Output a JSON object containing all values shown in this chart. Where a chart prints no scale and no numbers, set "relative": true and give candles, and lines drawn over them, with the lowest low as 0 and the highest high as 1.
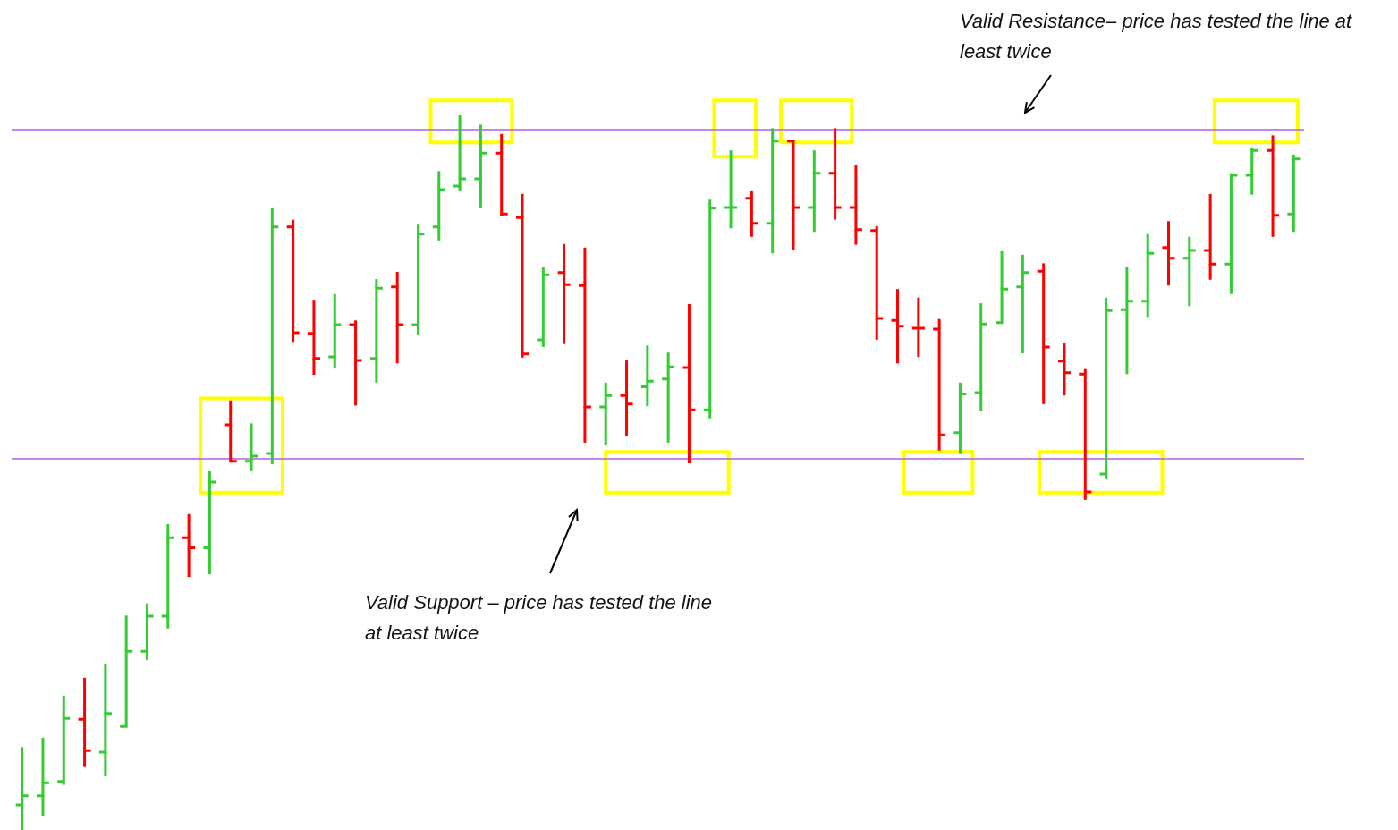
{
  "chart_data": {
    "type": "candlestick",
    "relative": true,
    "tick_labels": false,
    "grid": false,
    "categories": [
      null,
      null,
      null,
      null,
      null,
      null,
      null,
      null,
      null,
      null,
      null,
      null,
      null,
      null,
      null,
      null,
      null,
      null,
      null,
      null,
      null,
      null,
      null,
      null,
      null,
      null,
      null,
      null,
      null,
      null,
      null,
      null,
      null,
      null,
      null,
      null,
      null,
      null,
      null,
      null,
      null,
      null,
      null,
      null,
      null,
      null,
      null,
      null,
      null,
      null,
      null,
      null,
      null,
      null,
      null,
      null,
      null,
      null,
      null,
      null,
      null,
      null
    ],
    "ohlc": [
      [
        0.035,
        0.116,
        0,
        0.048
      ],
      [
        0.048,
        0.129,
        0.02,
        0.066
      ],
      [
        0.068,
        0.188,
        0.063,
        0.156
      ],
      [
        0.155,
        0.213,
        0.088,
        0.111
      ],
      [
        0.109,
        0.233,
        0.075,
        0.163
      ],
      [
        0.145,
        0.3,
        0.145,
        0.25
      ],
      [
        0.25,
        0.317,
        0.238,
        0.299
      ],
      [
        0.299,
        0.428,
        0.282,
        0.409
      ],
      [
        0.409,
        0.442,
        0.354,
        0.395
      ],
      [
        0.395,
        0.502,
        0.358,
        0.487
      ],
      [
        0.567,
        0.601,
        0.516,
        0.516
      ],
      [
        0.516,
        0.569,
        0.502,
        0.523
      ],
      [
        0.527,
        0.87,
        0.512,
        0.844
      ],
      [
        0.844,
        0.854,
        0.683,
        0.696
      ],
      [
        0.695,
        0.742,
        0.637,
        0.66
      ],
      [
        0.662,
        0.75,
        0.646,
        0.707
      ],
      [
        0.707,
        0.713,
        0.594,
        0.657
      ],
      [
        0.66,
        0.771,
        0.626,
        0.758
      ],
      [
        0.76,
        0.781,
        0.653,
        0.707
      ],
      [
        0.707,
        0.847,
        0.693,
        0.834
      ],
      [
        0.844,
        0.922,
        0.825,
        0.896
      ],
      [
        0.901,
        1,
        0.895,
        0.911
      ],
      [
        0.911,
        0.987,
        0.87,
        0.947
      ],
      [
        0.947,
        0.974,
        0.859,
        0.862
      ],
      [
        0.857,
        0.89,
        0.661,
        0.666
      ],
      [
        0.686,
        0.788,
        0.676,
        0.777
      ],
      [
        0.78,
        0.82,
        0.68,
        0.763
      ],
      [
        0.762,
        0.815,
        0.542,
        0.592
      ],
      [
        0.592,
        0.626,
        0.539,
        0.608
      ],
      [
        0.608,
        0.657,
        0.552,
        0.596
      ],
      [
        0.62,
        0.678,
        0.593,
        0.628
      ],
      [
        0.631,
        0.668,
        0.542,
        0.648
      ],
      [
        0.647,
        0.736,
        0.513,
        0.588
      ],
      [
        0.588,
        0.882,
        0.576,
        0.87
      ],
      [
        0.871,
        0.951,
        0.842,
        0.871
      ],
      [
        0.884,
        0.895,
        0.83,
        0.849
      ],
      [
        0.849,
        0.982,
        0.807,
        0.964
      ],
      [
        0.964,
        0.965,
        0.811,
        0.871
      ],
      [
        0.871,
        0.951,
        0.837,
        0.919
      ],
      [
        0.919,
        0.982,
        0.854,
        0.871
      ],
      [
        0.871,
        0.93,
        0.819,
        0.84
      ],
      [
        0.839,
        0.845,
        0.686,
        0.716
      ],
      [
        0.713,
        0.757,
        0.653,
        0.705
      ],
      [
        0.702,
        0.745,
        0.662,
        0.702
      ],
      [
        0.701,
        0.715,
        0.531,
        0.553
      ],
      [
        0.556,
        0.626,
        0.526,
        0.61
      ],
      [
        0.612,
        0.737,
        0.586,
        0.708
      ],
      [
        0.71,
        0.81,
        0.71,
        0.757
      ],
      [
        0.76,
        0.805,
        0.667,
        0.78
      ],
      [
        0.782,
        0.793,
        0.596,
        0.676
      ],
      [
        0.656,
        0.682,
        0.608,
        0.64
      ],
      [
        0.638,
        0.645,
        0.462,
        0.473
      ],
      [
        0.498,
        0.745,
        0.492,
        0.727
      ],
      [
        0.728,
        0.788,
        0.638,
        0.74
      ],
      [
        0.74,
        0.834,
        0.718,
        0.807
      ],
      [
        0.815,
        0.852,
        0.762,
        0.8
      ],
      [
        0.8,
        0.83,
        0.733,
        0.811
      ],
      [
        0.811,
        0.89,
        0.77,
        0.792
      ],
      [
        0.792,
        0.919,
        0.75,
        0.916
      ],
      [
        0.916,
        0.954,
        0.889,
        0.951
      ],
      [
        0.951,
        0.972,
        0.83,
        0.86
      ],
      [
        0.862,
        0.945,
        0.837,
        0.939
      ]
    ],
    "colors": [
      "#33cc33",
      "#33cc33",
      "#33cc33",
      "#ff0000",
      "#33cc33",
      "#33cc33",
      "#33cc33",
      "#33cc33",
      "#ff0000",
      "#33cc33",
      "#ff0000",
      "#33cc33",
      "#33cc33",
      "#ff0000",
      "#ff0000",
      "#33cc33",
      "#ff0000",
      "#33cc33",
      "#ff0000",
      "#33cc33",
      "#33cc33",
      "#33cc33",
      "#33cc33",
      "#ff0000",
      "#ff0000",
      "#33cc33",
      "#ff0000",
      "#ff0000",
      "#33cc33",
      "#ff0000",
      "#33cc33",
      "#33cc33",
      "#ff0000",
      "#33cc33",
      "#33cc33",
      "#ff0000",
      "#33cc33",
      "#ff0000",
      "#33cc33",
      "#ff0000",
      "#ff0000",
      "#ff0000",
      "#ff0000",
      "#ff0000",
      "#ff0000",
      "#33cc33",
      "#33cc33",
      "#33cc33",
      "#33cc33",
      "#ff0000",
      "#ff0000",
      "#ff0000",
      "#33cc33",
      "#33cc33",
      "#33cc33",
      "#ff0000",
      "#33cc33",
      "#ff0000",
      "#33cc33",
      "#33cc33",
      "#ff0000",
      "#33cc33"
    ],
    "ref_lines": [
      {
        "axis": "y",
        "value": 0.982,
        "label": null,
        "color": "#b05ee0"
      },
      {
        "axis": "y",
        "value": 0.518,
        "label": null,
        "color": "#b05ee0"
      }
    ],
    "annotations": [
      "Valid Resistance– price has tested the line at least twice",
      "Valid Support – price has tested the line at least twice"
    ]
  }
}
